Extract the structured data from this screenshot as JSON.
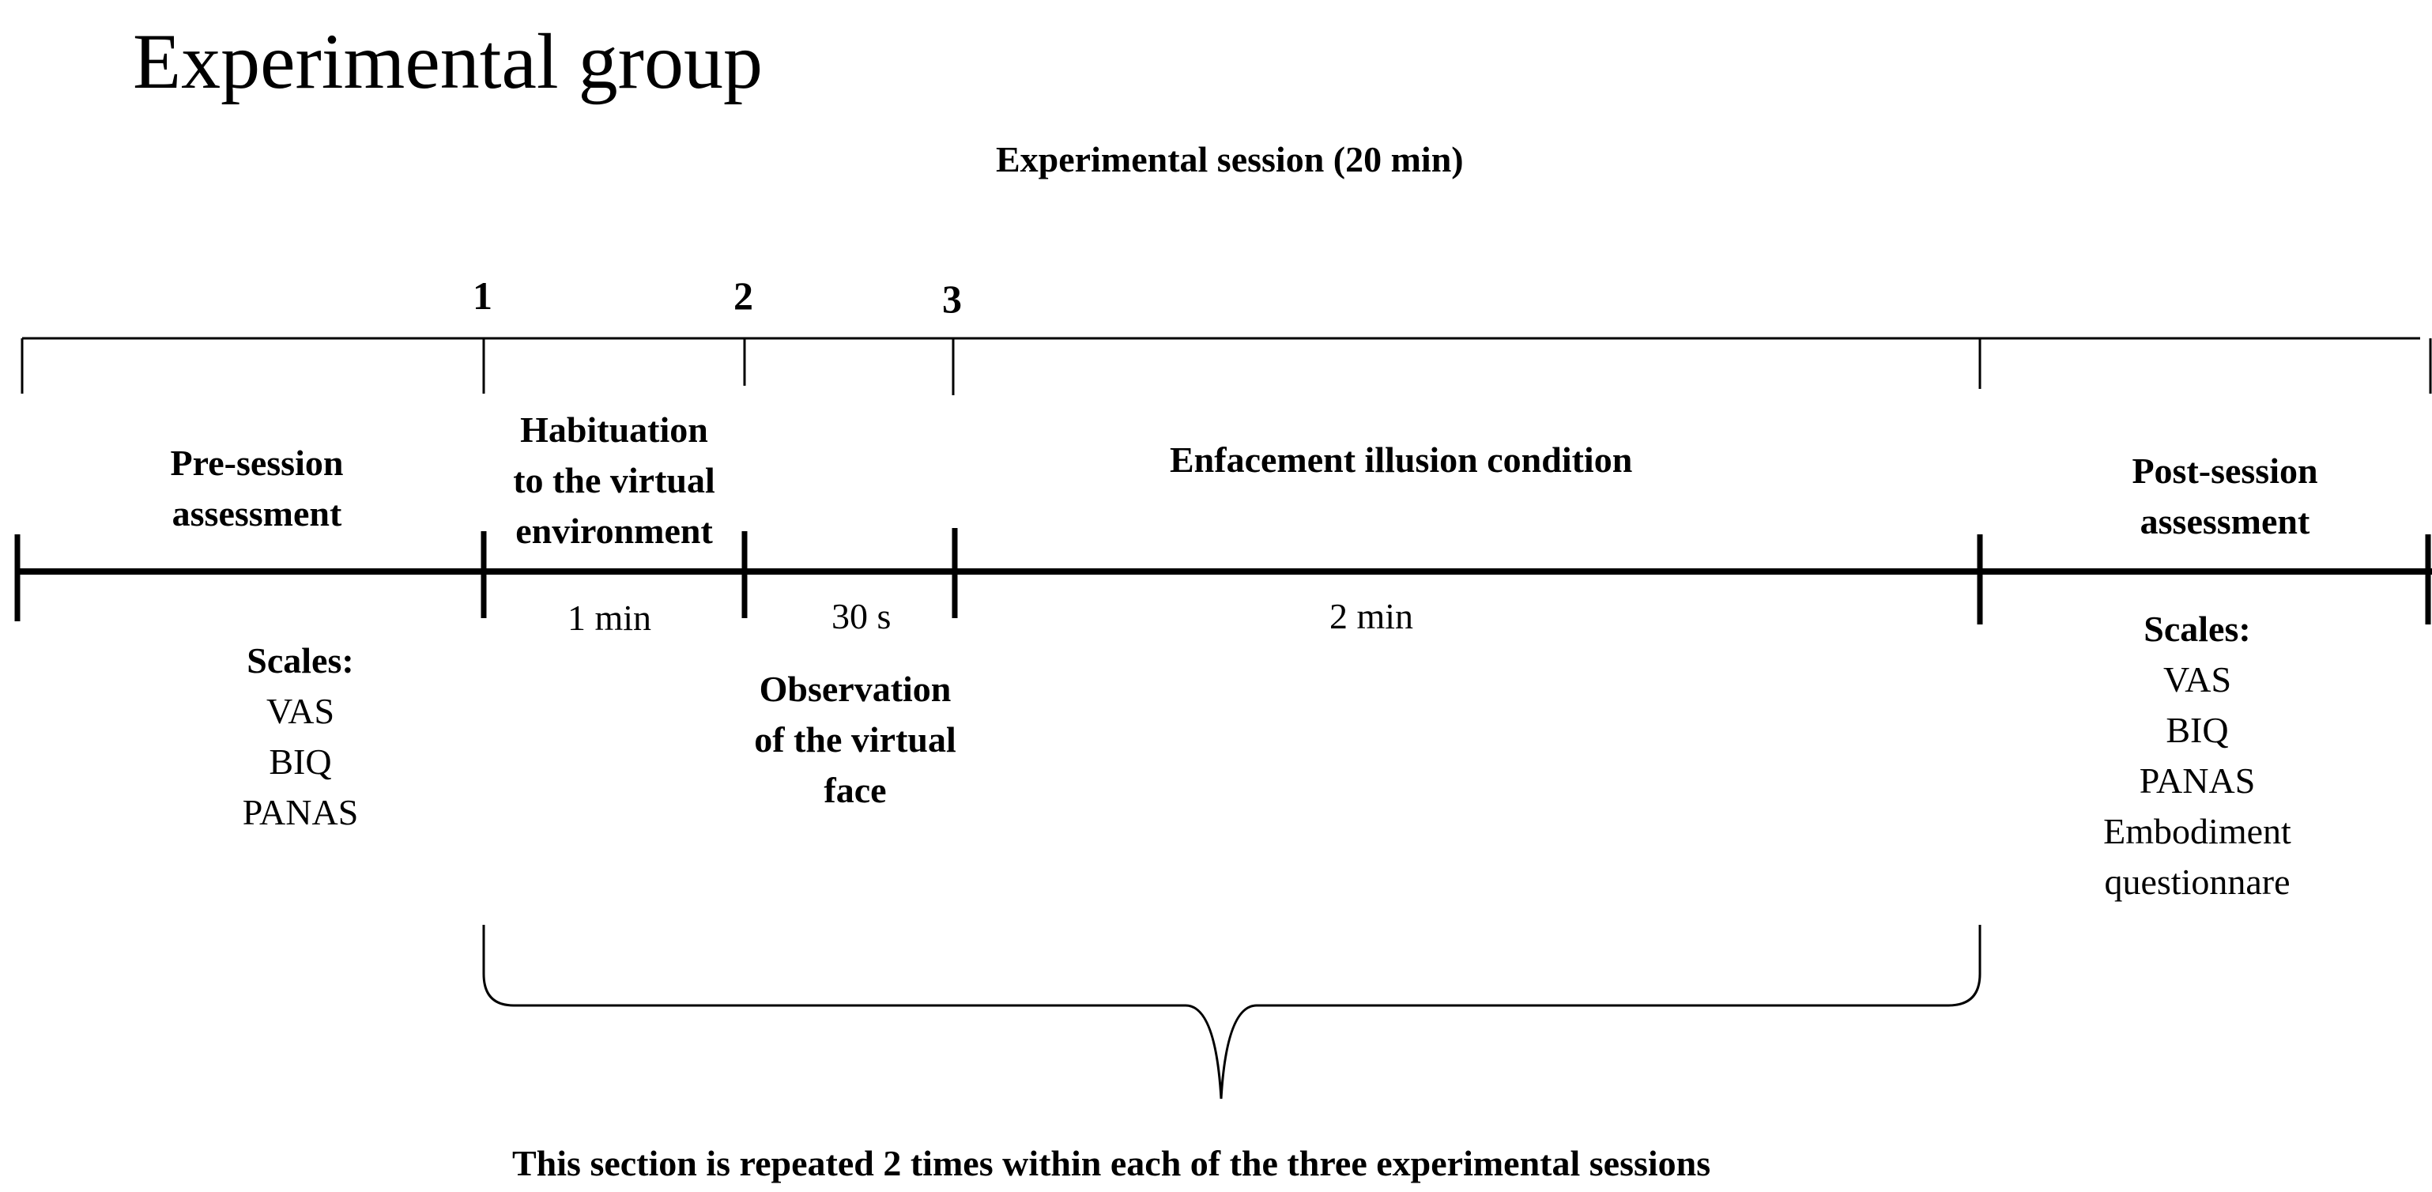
{
  "title": "Experimental group",
  "session_label": "Experimental  session (20 min)",
  "markers": [
    "1",
    "2",
    "3"
  ],
  "phases": {
    "pre": [
      "Pre-session",
      "assessment"
    ],
    "habituation": [
      "Habituation",
      "to the virtual",
      "environment"
    ],
    "enfacement": "Enfacement illusion  condition",
    "post": [
      "Post-session",
      "assessment"
    ]
  },
  "durations": [
    "1 min",
    "30 s",
    "2 min"
  ],
  "observation": [
    "Observation",
    "of the virtual",
    "face"
  ],
  "pre_scales": {
    "heading": "Scales:",
    "items": [
      "VAS",
      "BIQ",
      "PANAS"
    ]
  },
  "post_scales": {
    "heading": "Scales:",
    "items": [
      "VAS",
      "BIQ",
      "PANAS",
      "Embodiment",
      "questionnare"
    ]
  },
  "footer": "This  section is repeated 2 times within  each of the three experimental  sessions"
}
